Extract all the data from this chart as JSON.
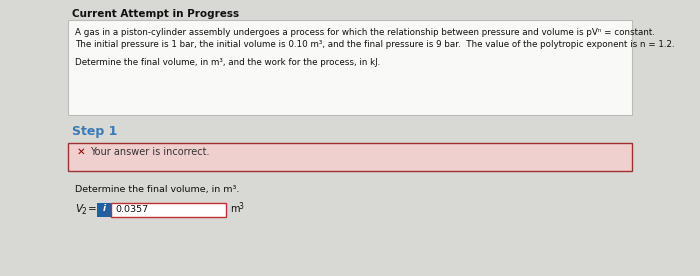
{
  "title": "Current Attempt in Progress",
  "problem_line1": "A gas in a piston-cylinder assembly undergoes a process for which the relationship between pressure and volume is pVⁿ = constant.",
  "problem_line2": "The initial pressure is 1 bar, the initial volume is 0.10 m³, and the final pressure is 9 bar.  The value of the polytropic exponent is n = 1.2.",
  "problem_line3": "Determine the final volume, in m³, and the work for the process, in kJ.",
  "step_label": "Step 1",
  "question_text": "Determine the final volume, in m³.",
  "input_value": "0.0357",
  "outer_bg": "#d8d8d5",
  "box_bg": "#f9f9f7",
  "error_bg": "#f0d0ce",
  "error_border": "#a03030",
  "step_color": "#3a7ab5",
  "input_bg": "#ffffff",
  "input_border": "#c03030",
  "button_bg": "#2060a0",
  "title_color": "#111111",
  "text_color": "#111111",
  "error_text_color": "#333333",
  "problem_box_border": "#bbbbbb",
  "error_x_color": "#8b0000"
}
